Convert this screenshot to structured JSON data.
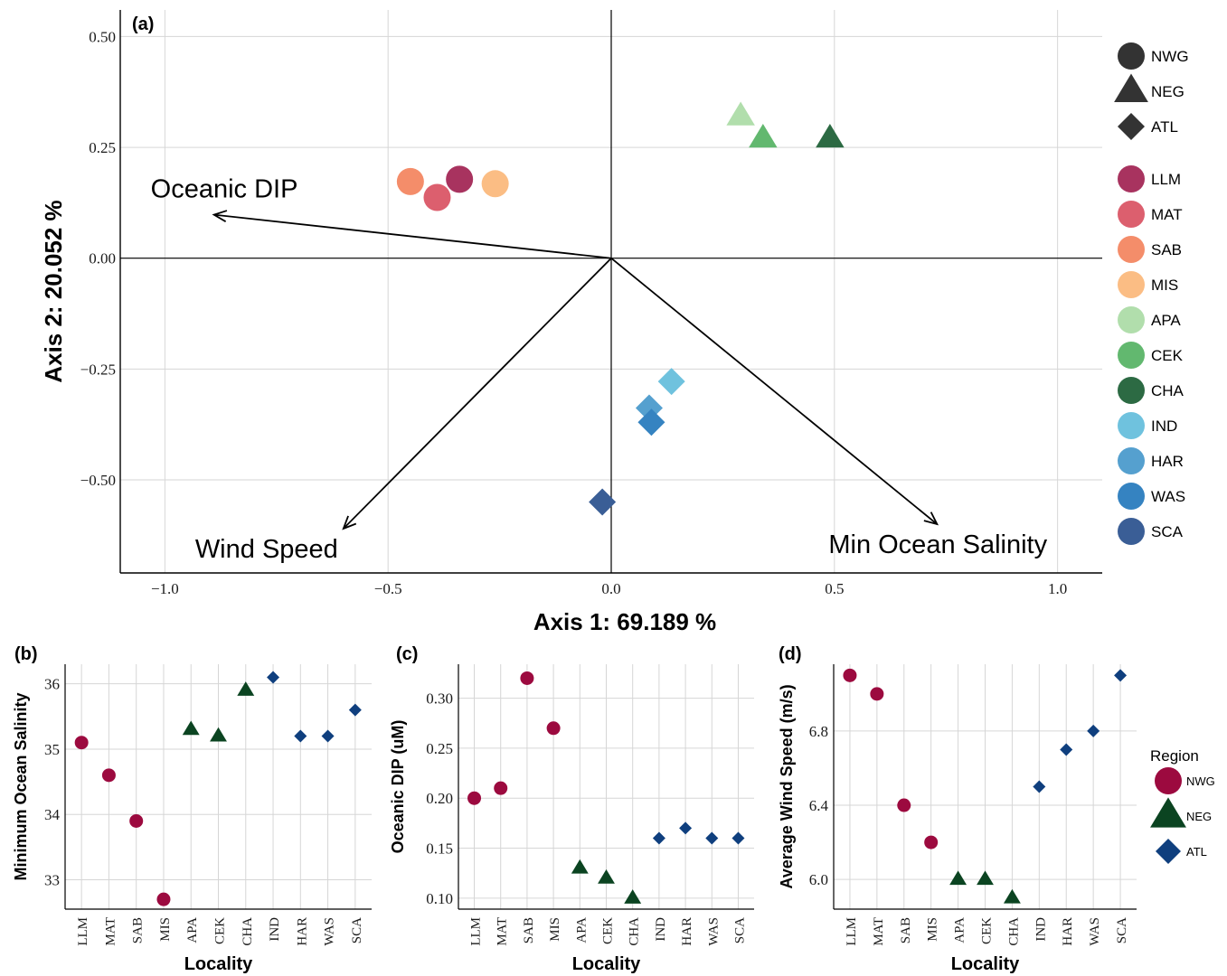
{
  "chart_data": [
    {
      "type": "scatter",
      "panel_label": "(a)",
      "xlabel": "Axis 1:  69.189 %",
      "ylabel": "Axis 2:  20.052 %",
      "xlim": [
        -1.1,
        1.1
      ],
      "ylim": [
        -0.71,
        0.56
      ],
      "x_ticks": [
        -1.0,
        -0.5,
        0.0,
        0.5,
        1.0
      ],
      "x_tick_labels": [
        "−1.0",
        "−0.5",
        "0.0",
        "0.5",
        "1.0"
      ],
      "y_ticks": [
        -0.5,
        -0.25,
        0.0,
        0.25,
        0.5
      ],
      "y_tick_labels": [
        "−0.50",
        "−0.25",
        "0.00",
        "0.25",
        "0.50"
      ],
      "grid": true,
      "points": [
        {
          "locality": "LLM",
          "region": "NWG",
          "x": -0.34,
          "y": 0.178,
          "color": "#a8335f"
        },
        {
          "locality": "MAT",
          "region": "NWG",
          "x": -0.39,
          "y": 0.137,
          "color": "#dc5f6e"
        },
        {
          "locality": "SAB",
          "region": "NWG",
          "x": -0.45,
          "y": 0.173,
          "color": "#f48d6a"
        },
        {
          "locality": "MIS",
          "region": "NWG",
          "x": -0.26,
          "y": 0.168,
          "color": "#fbbd84"
        },
        {
          "locality": "APA",
          "region": "NEG",
          "x": 0.29,
          "y": 0.32,
          "color": "#b1deac"
        },
        {
          "locality": "CEK",
          "region": "NEG",
          "x": 0.34,
          "y": 0.27,
          "color": "#62b86f"
        },
        {
          "locality": "CHA",
          "region": "NEG",
          "x": 0.49,
          "y": 0.27,
          "color": "#2c6a43"
        },
        {
          "locality": "IND",
          "region": "ATL",
          "x": 0.135,
          "y": -0.278,
          "color": "#6fc2de"
        },
        {
          "locality": "HAR",
          "region": "ATL",
          "x": 0.085,
          "y": -0.338,
          "color": "#55a0cf"
        },
        {
          "locality": "WAS",
          "region": "ATL",
          "x": 0.09,
          "y": -0.37,
          "color": "#3583c1"
        },
        {
          "locality": "SCA",
          "region": "ATL",
          "x": -0.02,
          "y": -0.55,
          "color": "#3a5e96"
        }
      ],
      "vectors": [
        {
          "label": "Oceanic DIP",
          "x": -0.89,
          "y": 0.098
        },
        {
          "label": "Wind Speed",
          "x": -0.6,
          "y": -0.61
        },
        {
          "label": "Min Ocean Salinity",
          "x": 0.73,
          "y": -0.6
        }
      ],
      "legend_position": "right",
      "legend_regions": [
        {
          "label": "NWG",
          "shape": "circle"
        },
        {
          "label": "NEG",
          "shape": "triangle"
        },
        {
          "label": "ATL",
          "shape": "diamond"
        }
      ]
    },
    {
      "type": "scatter",
      "panel_label": "(b)",
      "xlabel": "Locality",
      "ylabel": "Minimum Ocean Salinity",
      "categories": [
        "LLM",
        "MAT",
        "SAB",
        "MIS",
        "APA",
        "CEK",
        "CHA",
        "IND",
        "HAR",
        "WAS",
        "SCA"
      ],
      "regions": [
        "NWG",
        "NWG",
        "NWG",
        "NWG",
        "NEG",
        "NEG",
        "NEG",
        "ATL",
        "ATL",
        "ATL",
        "ATL"
      ],
      "values": [
        35.1,
        34.6,
        33.9,
        32.7,
        35.3,
        35.2,
        35.9,
        36.1,
        35.2,
        35.2,
        35.6
      ],
      "ylim": [
        32.55,
        36.3
      ],
      "y_ticks": [
        33,
        34,
        35,
        36
      ],
      "y_tick_labels": [
        "33",
        "34",
        "35",
        "36"
      ],
      "grid": true
    },
    {
      "type": "scatter",
      "panel_label": "(c)",
      "xlabel": "Locality",
      "ylabel": "Oceanic DIP (uM)",
      "categories": [
        "LLM",
        "MAT",
        "SAB",
        "MIS",
        "APA",
        "CEK",
        "CHA",
        "IND",
        "HAR",
        "WAS",
        "SCA"
      ],
      "regions": [
        "NWG",
        "NWG",
        "NWG",
        "NWG",
        "NEG",
        "NEG",
        "NEG",
        "ATL",
        "ATL",
        "ATL",
        "ATL"
      ],
      "values": [
        0.2,
        0.21,
        0.32,
        0.27,
        0.13,
        0.12,
        0.1,
        0.16,
        0.17,
        0.16,
        0.16
      ],
      "ylim": [
        0.089,
        0.334
      ],
      "y_ticks": [
        0.1,
        0.15,
        0.2,
        0.25,
        0.3
      ],
      "y_tick_labels": [
        "0.10",
        "0.15",
        "0.20",
        "0.25",
        "0.30"
      ],
      "grid": true
    },
    {
      "type": "scatter",
      "panel_label": "(d)",
      "xlabel": "Locality",
      "ylabel": "Average Wind Speed (m/s)",
      "categories": [
        "LLM",
        "MAT",
        "SAB",
        "MIS",
        "APA",
        "CEK",
        "CHA",
        "IND",
        "HAR",
        "WAS",
        "SCA"
      ],
      "regions": [
        "NWG",
        "NWG",
        "NWG",
        "NWG",
        "NEG",
        "NEG",
        "NEG",
        "ATL",
        "ATL",
        "ATL",
        "ATL"
      ],
      "values": [
        7.1,
        7.0,
        6.4,
        6.2,
        6.0,
        6.0,
        5.9,
        6.5,
        6.7,
        6.8,
        7.1
      ],
      "ylim": [
        5.84,
        7.16
      ],
      "y_ticks": [
        6.0,
        6.4,
        6.8
      ],
      "y_tick_labels": [
        "6.0",
        "6.4",
        "6.8"
      ],
      "grid": true,
      "legend_title": "Region",
      "legend_position": "right",
      "legend_regions": [
        {
          "label": "NWG",
          "shape": "circle",
          "color": "#9c0a3f"
        },
        {
          "label": "NEG",
          "shape": "triangle",
          "color": "#0b4421"
        },
        {
          "label": "ATL",
          "shape": "diamond",
          "color": "#0f3f7e"
        }
      ]
    }
  ]
}
